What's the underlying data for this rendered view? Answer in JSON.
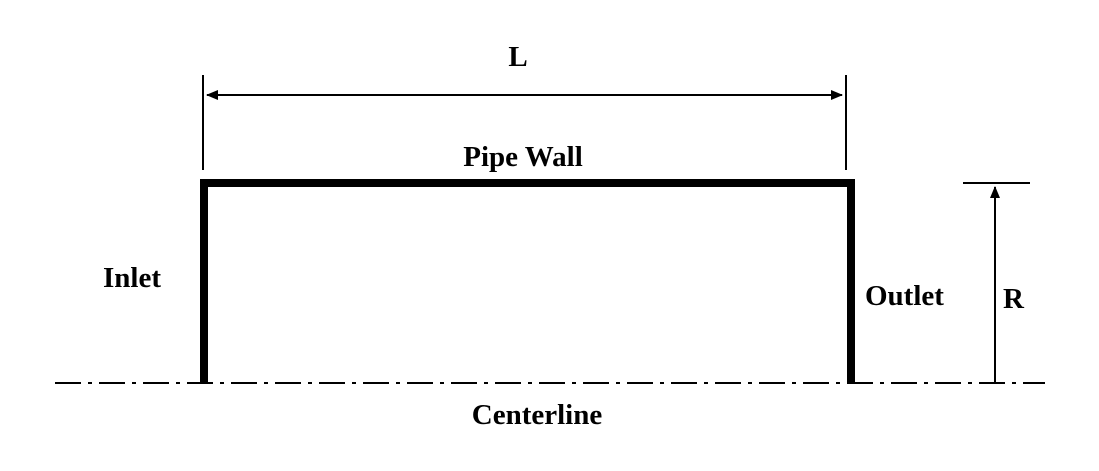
{
  "labels": {
    "length": "L",
    "wall": "Pipe Wall",
    "inlet": "Inlet",
    "outlet": "Outlet",
    "radius": "R",
    "centerline": "Centerline"
  },
  "colors": {
    "line": "#000000",
    "background": "#ffffff"
  }
}
